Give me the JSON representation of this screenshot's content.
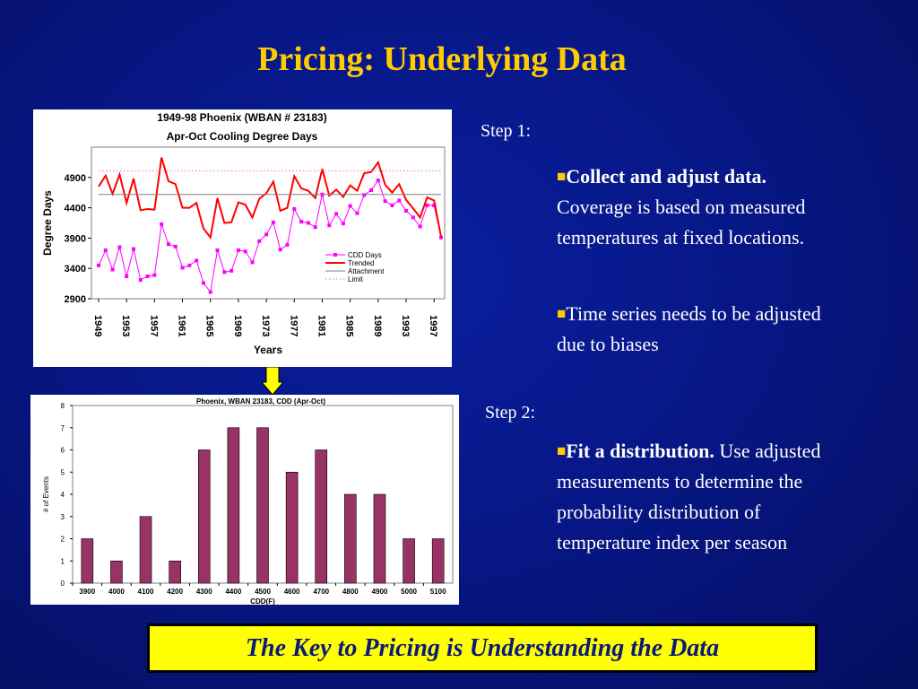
{
  "slide": {
    "title": "Pricing: Underlying Data",
    "step1": {
      "label": "Step 1:",
      "bullet1_bold": "Collect and adjust data.",
      "bullet1_text": " Coverage is based on measured temperatures at fixed locations.",
      "bullet2_text": "Time series needs to be adjusted due to biases"
    },
    "step2": {
      "label": "Step 2:",
      "bullet1_bold": "Fit a distribution.",
      "bullet1_text": " Use adjusted measurements to determine the probability distribution of temperature index per season"
    },
    "banner": "The Key to Pricing is Understanding the Data",
    "colors": {
      "title": "#ffcc00",
      "banner_bg": "#ffff00",
      "banner_text": "#0a1a7a",
      "background": "#071787"
    },
    "icons": {
      "bullet": "yellow-square-bullet",
      "arrow": "down-arrow-icon"
    }
  },
  "chart_data": [
    {
      "type": "line",
      "title": "1949-98 Phoenix (WBAN # 23183)",
      "subtitle": "Apr-Oct Cooling Degree Days",
      "xlabel": "Years",
      "ylabel": "Degree Days",
      "ylim": [
        2900,
        5400
      ],
      "yticks": [
        2900,
        3400,
        3900,
        4400,
        4900
      ],
      "xticks": [
        "1949",
        "1953",
        "1957",
        "1961",
        "1965",
        "1969",
        "1973",
        "1977",
        "1981",
        "1985",
        "1989",
        "1993",
        "1997"
      ],
      "x": [
        1949,
        1950,
        1951,
        1952,
        1953,
        1954,
        1955,
        1956,
        1957,
        1958,
        1959,
        1960,
        1961,
        1962,
        1963,
        1964,
        1965,
        1966,
        1967,
        1968,
        1969,
        1970,
        1971,
        1972,
        1973,
        1974,
        1975,
        1976,
        1977,
        1978,
        1979,
        1980,
        1981,
        1982,
        1983,
        1984,
        1985,
        1986,
        1987,
        1988,
        1989,
        1990,
        1991,
        1992,
        1993,
        1994,
        1995,
        1996,
        1997,
        1998
      ],
      "series": [
        {
          "name": "CDD Days",
          "color": "#ff00ff",
          "style": "line-markers",
          "values": [
            3450,
            3700,
            3380,
            3750,
            3270,
            3720,
            3210,
            3270,
            3290,
            4130,
            3800,
            3760,
            3410,
            3450,
            3530,
            3160,
            3010,
            3700,
            3340,
            3360,
            3700,
            3680,
            3500,
            3850,
            3960,
            4160,
            3710,
            3790,
            4380,
            4170,
            4150,
            4080,
            4620,
            4110,
            4300,
            4140,
            4430,
            4310,
            4610,
            4690,
            4850,
            4510,
            4440,
            4520,
            4350,
            4240,
            4090,
            4440,
            4440,
            3910
          ]
        },
        {
          "name": "Trended",
          "color": "#ff0000",
          "style": "line",
          "values": [
            4750,
            4930,
            4630,
            4950,
            4480,
            4880,
            4360,
            4380,
            4370,
            5230,
            4840,
            4790,
            4400,
            4400,
            4480,
            4060,
            3910,
            4560,
            4150,
            4160,
            4490,
            4450,
            4240,
            4550,
            4640,
            4830,
            4350,
            4400,
            4920,
            4720,
            4680,
            4560,
            5040,
            4600,
            4700,
            4580,
            4770,
            4680,
            4970,
            4990,
            5150,
            4780,
            4650,
            4790,
            4530,
            4390,
            4240,
            4570,
            4520,
            3920
          ]
        },
        {
          "name": "Attachment",
          "color": "#808080",
          "style": "line",
          "values": [
            4620,
            4620,
            4620,
            4620,
            4620,
            4620,
            4620,
            4620,
            4620,
            4620,
            4620,
            4620,
            4620,
            4620,
            4620,
            4620,
            4620,
            4620,
            4620,
            4620,
            4620,
            4620,
            4620,
            4620,
            4620,
            4620,
            4620,
            4620,
            4620,
            4620,
            4620,
            4620,
            4620,
            4620,
            4620,
            4620,
            4620,
            4620,
            4620,
            4620,
            4620,
            4620,
            4620,
            4620,
            4620,
            4620,
            4620,
            4620,
            4620,
            4620
          ]
        },
        {
          "name": "Limit",
          "color": "#ff66cc",
          "style": "dotted",
          "values": [
            5010,
            5010,
            5010,
            5010,
            5010,
            5010,
            5010,
            5010,
            5010,
            5010,
            5010,
            5010,
            5010,
            5010,
            5010,
            5010,
            5010,
            5010,
            5010,
            5010,
            5010,
            5010,
            5010,
            5010,
            5010,
            5010,
            5010,
            5010,
            5010,
            5010,
            5010,
            5010,
            5010,
            5010,
            5010,
            5010,
            5010,
            5010,
            5010,
            5010,
            5010,
            5010,
            5010,
            5010,
            5010,
            5010,
            5010,
            5010,
            5010,
            5010
          ]
        }
      ],
      "legend": "right-center"
    },
    {
      "type": "bar",
      "title": "Phoenix, WBAN 23183, CDD (Apr-Oct)",
      "xlabel": "CDD(F)",
      "ylabel": "# of Events",
      "ylim": [
        0,
        8
      ],
      "yticks": [
        0,
        1,
        2,
        3,
        4,
        5,
        6,
        7,
        8
      ],
      "categories": [
        "3900",
        "4000",
        "4100",
        "4200",
        "4300",
        "4400",
        "4500",
        "4600",
        "4700",
        "4800",
        "4900",
        "5000",
        "5100"
      ],
      "values": [
        2,
        1,
        3,
        1,
        6,
        7,
        7,
        5,
        6,
        4,
        4,
        2,
        2
      ],
      "bar_color": "#993366"
    }
  ]
}
